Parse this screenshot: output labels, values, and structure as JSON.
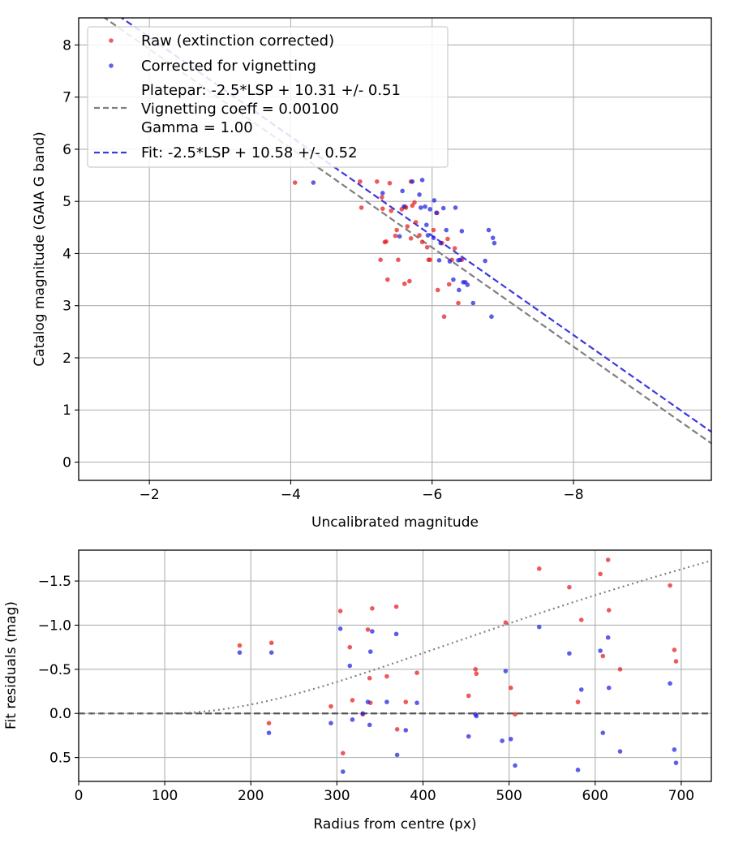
{
  "chart_data": [
    {
      "type": "scatter",
      "xlabel": "Uncalibrated magnitude",
      "ylabel": "Catalog magnitude (GAIA G band)",
      "xlim": [
        -1.0,
        -9.95
      ],
      "ylim": [
        8.52,
        -0.35
      ],
      "xticks": [
        -2,
        -4,
        -6,
        -8
      ],
      "xtick_labels": [
        "−2",
        "−4",
        "−6",
        "−8"
      ],
      "yticks": [
        0,
        1,
        2,
        3,
        4,
        5,
        6,
        7,
        8
      ],
      "ytick_labels": [
        "0",
        "1",
        "2",
        "3",
        "4",
        "5",
        "6",
        "7",
        "8"
      ],
      "grid": true,
      "legend_position": "top-left",
      "legend": [
        {
          "label": "Raw (extinction corrected)",
          "kind": "marker",
          "color": "#e41a1c"
        },
        {
          "label": "Corrected for vignetting",
          "kind": "marker",
          "color": "#1f1fe0"
        },
        {
          "label": "Platepar: -2.5*LSP + 10.31 +/- 0.51",
          "label2": "Vignetting coeff = 0.00100",
          "label3": "Gamma = 1.00",
          "kind": "dashed-line",
          "color": "#7f7f7f"
        },
        {
          "label": "Fit: -2.5*LSP + 10.58 +/- 0.52",
          "kind": "dashed-line",
          "color": "#3a3ae0"
        }
      ],
      "series": [
        {
          "name": "Raw (extinction corrected)",
          "kind": "scatter",
          "color": "#e41a1c",
          "points": [
            [
              -4.06,
              5.36
            ],
            [
              -4.98,
              5.38
            ],
            [
              -5.0,
              4.88
            ],
            [
              -5.22,
              5.38
            ],
            [
              -5.27,
              3.88
            ],
            [
              -5.29,
              5.08
            ],
            [
              -5.3,
              4.86
            ],
            [
              -5.33,
              4.22
            ],
            [
              -5.35,
              4.23
            ],
            [
              -5.37,
              3.5
            ],
            [
              -5.4,
              5.35
            ],
            [
              -5.42,
              4.82
            ],
            [
              -5.48,
              4.34
            ],
            [
              -5.5,
              4.45
            ],
            [
              -5.52,
              3.88
            ],
            [
              -5.57,
              4.85
            ],
            [
              -5.61,
              3.42
            ],
            [
              -5.63,
              4.88
            ],
            [
              -5.65,
              4.52
            ],
            [
              -5.68,
              3.47
            ],
            [
              -5.7,
              4.29
            ],
            [
              -5.72,
              4.92
            ],
            [
              -5.75,
              4.98
            ],
            [
              -5.77,
              4.6
            ],
            [
              -5.82,
              4.35
            ],
            [
              -5.86,
              4.22
            ],
            [
              -5.93,
              4.12
            ],
            [
              -5.95,
              3.88
            ],
            [
              -5.97,
              3.88
            ],
            [
              -6.02,
              4.45
            ],
            [
              -6.07,
              4.78
            ],
            [
              -6.08,
              3.3
            ],
            [
              -6.14,
              4.2
            ],
            [
              -6.17,
              2.79
            ],
            [
              -6.22,
              4.28
            ],
            [
              -6.24,
              3.41
            ],
            [
              -6.28,
              3.88
            ],
            [
              -6.32,
              4.1
            ],
            [
              -6.37,
              3.05
            ],
            [
              -6.42,
              3.88
            ],
            [
              -5.7,
              5.38
            ],
            [
              -5.62,
              4.9
            ]
          ]
        },
        {
          "name": "Corrected for vignetting",
          "kind": "scatter",
          "color": "#1f1fe0",
          "points": [
            [
              -4.32,
              5.36
            ],
            [
              -5.3,
              5.16
            ],
            [
              -5.54,
              4.33
            ],
            [
              -5.58,
              5.2
            ],
            [
              -5.6,
              4.9
            ],
            [
              -5.72,
              5.38
            ],
            [
              -5.82,
              5.13
            ],
            [
              -5.84,
              4.88
            ],
            [
              -5.86,
              5.41
            ],
            [
              -5.9,
              4.9
            ],
            [
              -5.92,
              4.55
            ],
            [
              -5.94,
              4.35
            ],
            [
              -5.97,
              4.85
            ],
            [
              -6.02,
              4.3
            ],
            [
              -6.03,
              5.02
            ],
            [
              -6.06,
              4.78
            ],
            [
              -6.1,
              3.87
            ],
            [
              -6.12,
              4.2
            ],
            [
              -6.16,
              4.87
            ],
            [
              -6.2,
              4.45
            ],
            [
              -6.25,
              3.85
            ],
            [
              -6.3,
              3.5
            ],
            [
              -6.33,
              4.88
            ],
            [
              -6.37,
              3.87
            ],
            [
              -6.38,
              3.3
            ],
            [
              -6.4,
              3.88
            ],
            [
              -6.42,
              4.43
            ],
            [
              -6.44,
              3.45
            ],
            [
              -6.47,
              3.45
            ],
            [
              -6.5,
              3.4
            ],
            [
              -6.58,
              3.05
            ],
            [
              -6.75,
              3.86
            ],
            [
              -6.8,
              4.45
            ],
            [
              -6.84,
              2.79
            ],
            [
              -6.86,
              4.3
            ],
            [
              -6.88,
              4.2
            ]
          ]
        },
        {
          "name": "Platepar: -2.5*LSP + 10.31 +/- 0.51",
          "kind": "line",
          "color": "#7f7f7f",
          "dash": true,
          "x": [
            -1.0,
            -9.95
          ],
          "y": [
            8.87,
            0.36
          ]
        },
        {
          "name": "Fit: -2.5*LSP + 10.58 +/- 0.52",
          "kind": "line",
          "color": "#3a3ae0",
          "dash": true,
          "x": [
            -1.0,
            -9.95
          ],
          "y": [
            9.1,
            0.58
          ]
        }
      ]
    },
    {
      "type": "scatter",
      "xlabel": "Radius from centre (px)",
      "ylabel": "Fit residuals (mag)",
      "xlim": [
        0,
        735
      ],
      "ylim": [
        -1.85,
        0.77
      ],
      "xticks": [
        0,
        100,
        200,
        300,
        400,
        500,
        600,
        700
      ],
      "xtick_labels": [
        "0",
        "100",
        "200",
        "300",
        "400",
        "500",
        "600",
        "700"
      ],
      "yticks": [
        0.5,
        0.0,
        -0.5,
        -1.0,
        -1.5
      ],
      "ytick_labels": [
        "0.5",
        "0.0",
        "−0.5",
        "−1.0",
        "−1.5"
      ],
      "grid": true,
      "series": [
        {
          "name": "Raw (extinction corrected)",
          "kind": "scatter",
          "color": "#e41a1c",
          "points": [
            [
              187,
              -0.77
            ],
            [
              221,
              0.11
            ],
            [
              224,
              -0.8
            ],
            [
              293,
              -0.08
            ],
            [
              304,
              -1.16
            ],
            [
              307,
              0.45
            ],
            [
              315,
              -0.75
            ],
            [
              318,
              -0.15
            ],
            [
              330,
              0.01
            ],
            [
              336,
              -0.95
            ],
            [
              338,
              -0.4
            ],
            [
              339,
              -0.12
            ],
            [
              341,
              -1.19
            ],
            [
              358,
              -0.42
            ],
            [
              369,
              -1.21
            ],
            [
              370,
              0.18
            ],
            [
              380,
              -0.13
            ],
            [
              393,
              -0.46
            ],
            [
              453,
              -0.2
            ],
            [
              461,
              -0.5
            ],
            [
              462,
              -0.45
            ],
            [
              496,
              -1.03
            ],
            [
              502,
              -0.29
            ],
            [
              507,
              0.01
            ],
            [
              535,
              -1.64
            ],
            [
              570,
              -1.43
            ],
            [
              580,
              -0.13
            ],
            [
              584,
              -1.06
            ],
            [
              606,
              -1.58
            ],
            [
              609,
              -0.65
            ],
            [
              615,
              -1.74
            ],
            [
              616,
              -1.17
            ],
            [
              629,
              -0.5
            ],
            [
              687,
              -1.45
            ],
            [
              692,
              -0.72
            ],
            [
              694,
              -0.59
            ]
          ]
        },
        {
          "name": "Corrected for vignetting",
          "kind": "scatter",
          "color": "#1f1fe0",
          "points": [
            [
              187,
              -0.69
            ],
            [
              221,
              0.22
            ],
            [
              224,
              -0.69
            ],
            [
              293,
              0.11
            ],
            [
              304,
              -0.96
            ],
            [
              307,
              0.66
            ],
            [
              315,
              -0.54
            ],
            [
              318,
              0.07
            ],
            [
              330,
              0.0
            ],
            [
              336,
              -0.13
            ],
            [
              338,
              0.13
            ],
            [
              339,
              -0.7
            ],
            [
              341,
              -0.93
            ],
            [
              358,
              -0.13
            ],
            [
              369,
              -0.9
            ],
            [
              370,
              0.47
            ],
            [
              380,
              0.19
            ],
            [
              393,
              -0.12
            ],
            [
              453,
              0.26
            ],
            [
              461,
              0.01
            ],
            [
              462,
              0.03
            ],
            [
              492,
              0.31
            ],
            [
              496,
              -0.48
            ],
            [
              502,
              0.29
            ],
            [
              507,
              0.59
            ],
            [
              535,
              -0.98
            ],
            [
              570,
              -0.68
            ],
            [
              580,
              0.64
            ],
            [
              584,
              -0.27
            ],
            [
              606,
              -0.71
            ],
            [
              609,
              0.22
            ],
            [
              615,
              -0.86
            ],
            [
              616,
              -0.29
            ],
            [
              629,
              0.43
            ],
            [
              687,
              -0.34
            ],
            [
              692,
              0.41
            ],
            [
              694,
              0.56
            ]
          ]
        },
        {
          "name": "",
          "kind": "line",
          "color": "#555555",
          "dash": true,
          "x": [
            0,
            735
          ],
          "y": [
            0,
            0
          ]
        },
        {
          "name": "",
          "kind": "curve",
          "color": "#808080",
          "dotted": true,
          "coeff": 0.001,
          "x_start": 100,
          "x_end": 735
        }
      ]
    }
  ]
}
